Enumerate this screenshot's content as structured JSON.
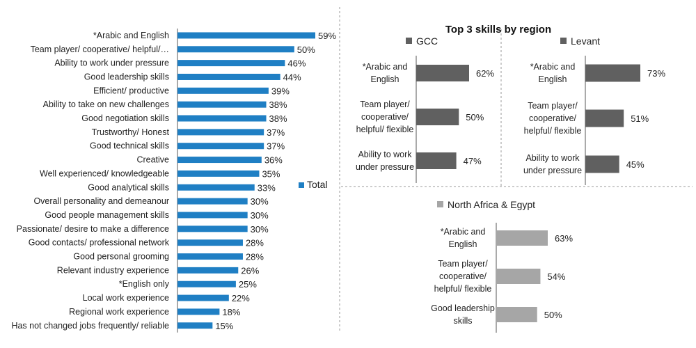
{
  "colors": {
    "total": "#1f7fc4",
    "gcc": "#606060",
    "levant": "#606060",
    "north_africa": "#a6a6a6",
    "axis": "#555555",
    "divider": "#9a9a9a"
  },
  "chart_data": [
    {
      "type": "bar",
      "orientation": "horizontal",
      "legend": "Total",
      "xlim": [
        0,
        59
      ],
      "categories": [
        "*Arabic and English",
        "Team player/ cooperative/ helpful/…",
        "Ability to work under pressure",
        "Good leadership skills",
        "Efficient/ productive",
        "Ability to take on new challenges",
        "Good negotiation skills",
        "Trustworthy/ Honest",
        "Good technical skills",
        "Creative",
        "Well experienced/ knowledgeable",
        "Good analytical skills",
        "Overall personality and demeanour",
        "Good people management skills",
        "Passionate/ desire to make a difference",
        "Good contacts/ professional network",
        "Good personal grooming",
        "Relevant industry experience",
        "*English only",
        "Local work experience",
        "Regional work experience",
        "Has not changed jobs frequently/ reliable"
      ],
      "values": [
        59,
        50,
        46,
        44,
        39,
        38,
        38,
        37,
        37,
        36,
        35,
        33,
        30,
        30,
        30,
        28,
        28,
        26,
        25,
        22,
        18,
        15
      ],
      "value_labels": [
        "59%",
        "50%",
        "46%",
        "44%",
        "39%",
        "38%",
        "38%",
        "37%",
        "37%",
        "36%",
        "35%",
        "33%",
        "30%",
        "30%",
        "30%",
        "28%",
        "28%",
        "26%",
        "25%",
        "22%",
        "18%",
        "15%"
      ]
    },
    {
      "type": "bar",
      "orientation": "horizontal",
      "title": "Top 3 skills by region",
      "legend": "GCC",
      "xlim": [
        0,
        62
      ],
      "categories": [
        [
          "*Arabic and",
          "English"
        ],
        [
          "Team player/",
          "cooperative/",
          "helpful/ flexible"
        ],
        [
          "Ability to work",
          "under pressure"
        ]
      ],
      "values": [
        62,
        50,
        47
      ],
      "value_labels": [
        "62%",
        "50%",
        "47%"
      ]
    },
    {
      "type": "bar",
      "orientation": "horizontal",
      "legend": "Levant",
      "xlim": [
        0,
        73
      ],
      "categories": [
        [
          "*Arabic and",
          "English"
        ],
        [
          "Team player/",
          "cooperative/",
          "helpful/ flexible"
        ],
        [
          "Ability to work",
          "under pressure"
        ]
      ],
      "values": [
        73,
        51,
        45
      ],
      "value_labels": [
        "73%",
        "51%",
        "45%"
      ]
    },
    {
      "type": "bar",
      "orientation": "horizontal",
      "legend": "North Africa & Egypt",
      "xlim": [
        0,
        63
      ],
      "categories": [
        [
          "*Arabic and",
          "English"
        ],
        [
          "Team player/",
          "cooperative/",
          "helpful/ flexible"
        ],
        [
          "Good leadership",
          "skills"
        ]
      ],
      "values": [
        63,
        54,
        50
      ],
      "value_labels": [
        "63%",
        "54%",
        "50%"
      ]
    }
  ]
}
